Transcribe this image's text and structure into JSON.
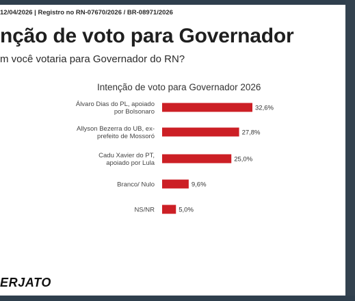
{
  "header": {
    "registro": "12/04/2026 | Registro no RN-07670/2026 / BR-08971/2026",
    "headline": "nção de voto para Governador",
    "question": "m você votaria para Governador do RN?"
  },
  "brand": {
    "text": "ERJATO"
  },
  "colors": {
    "bar": "#cc1f25",
    "frame": "#2f3f4d"
  },
  "chart_data": {
    "type": "bar",
    "orientation": "horizontal",
    "title": "Intenção de voto para Governador 2026",
    "categories": [
      [
        "Álvaro Dias do PL, apoiado",
        "por Bolsonaro"
      ],
      [
        "Allyson Bezerra do UB, ex-",
        "prefeito de Mossoró"
      ],
      [
        "Cadu Xavier do PT,",
        "apoiado por Lula"
      ],
      [
        "Branco/ Nulo"
      ],
      [
        "NS/NR"
      ]
    ],
    "values": [
      32.6,
      27.8,
      25.0,
      9.6,
      5.0
    ],
    "value_labels": [
      "32,6%",
      "27,8%",
      "25,0%",
      "9,6%",
      "5,0%"
    ],
    "xlim": [
      0,
      35
    ],
    "grid": false,
    "legend": "none"
  }
}
